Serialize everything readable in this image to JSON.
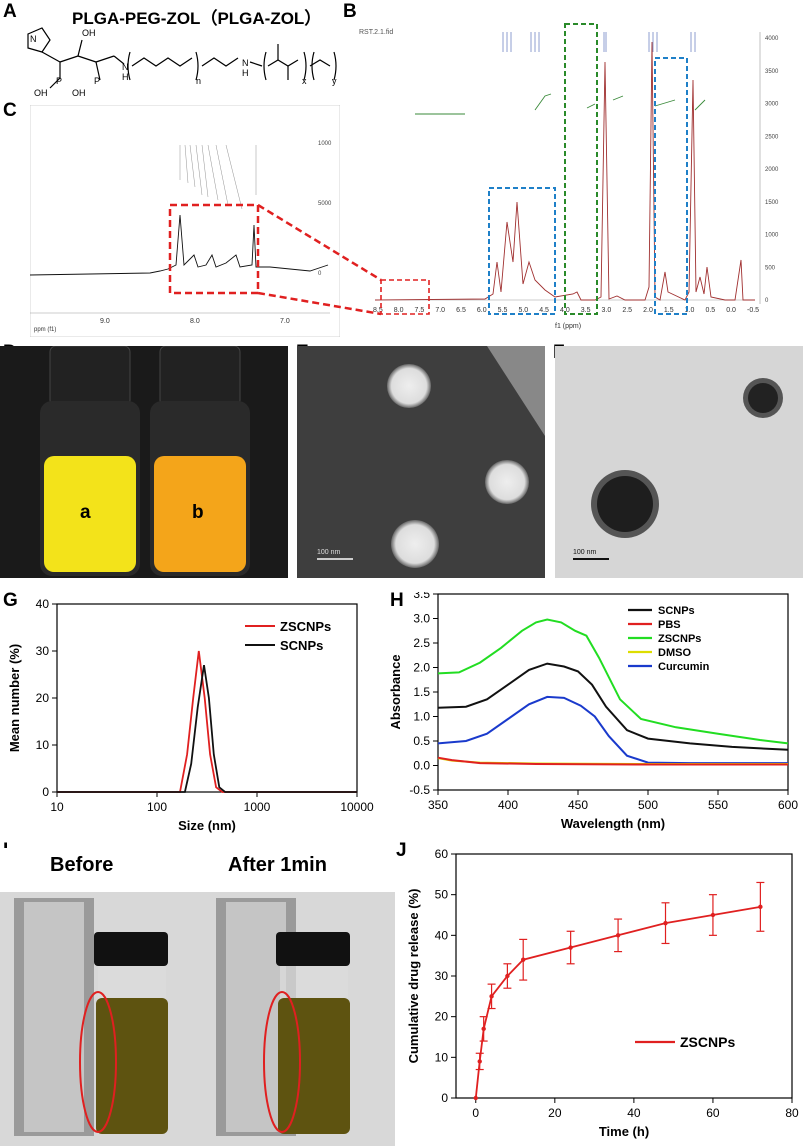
{
  "panels": {
    "A": "A",
    "B": "B",
    "C": "C",
    "D": "D",
    "E": "E",
    "F": "F",
    "G": "G",
    "H": "H",
    "I": "I",
    "J": "J"
  },
  "panel_a": {
    "title": "PLGA-PEG-ZOL（PLGA-ZOL）",
    "sub_n": "n",
    "sub_x": "x",
    "sub_y": "y",
    "oh1": "OH",
    "oh2": "OH",
    "oh3": "OH",
    "h": "H",
    "h2": "H"
  },
  "panel_b": {
    "axis_label": "f1 (ppm)",
    "header": "RST.2.1.fid",
    "x_ticks": [
      "6.5",
      "6.0",
      "5.5",
      "5.0",
      "4.5",
      "4.0",
      "3.5",
      "3.0",
      "2.5",
      "2.0",
      "1.5",
      "1.0",
      "0.5",
      "0.0",
      "-0.5"
    ],
    "left_ticks": [
      "8.5",
      "8.0",
      "7.5",
      "7.0"
    ],
    "y_ticks": [
      "4000",
      "3500",
      "3000",
      "2500",
      "2000",
      "1500",
      "1000",
      "500",
      "0"
    ]
  },
  "panel_c": {
    "axis_label": "ppm (f1)",
    "x_ticks": [
      "9.0",
      "8.0",
      "7.0"
    ],
    "y_ticks": [
      "1000",
      "5000",
      "0"
    ]
  },
  "panel_d": {
    "label_a": "a",
    "label_b": "b"
  },
  "panel_e": {
    "scale": "100 nm"
  },
  "panel_f": {
    "scale": "100 nm"
  },
  "panel_i": {
    "before": "Before",
    "after": "After 1min"
  },
  "chart_data": [
    {
      "type": "line",
      "id": "G",
      "xlabel": "Size (nm)",
      "ylabel": "Mean number  (%)",
      "xscale": "log",
      "xlim": [
        10,
        10000
      ],
      "ylim": [
        0,
        40
      ],
      "x_ticks": [
        "10",
        "100",
        "1000",
        "10000"
      ],
      "y_ticks": [
        "0",
        "10",
        "20",
        "30",
        "40"
      ],
      "legend": [
        "ZSCNPs",
        "SCNPs"
      ],
      "series": [
        {
          "name": "ZSCNPs",
          "color": "#e02020",
          "points": [
            [
              10,
              0
            ],
            [
              170,
              0
            ],
            [
              200,
              8
            ],
            [
              230,
              20
            ],
            [
              262,
              30
            ],
            [
              300,
              20
            ],
            [
              340,
              8
            ],
            [
              390,
              1
            ],
            [
              450,
              0
            ],
            [
              10000,
              0
            ]
          ]
        },
        {
          "name": "SCNPs",
          "color": "#111111",
          "points": [
            [
              10,
              0
            ],
            [
              190,
              0
            ],
            [
              220,
              6
            ],
            [
              255,
              18
            ],
            [
              295,
              27
            ],
            [
              330,
              20
            ],
            [
              370,
              8
            ],
            [
              420,
              1
            ],
            [
              480,
              0
            ],
            [
              10000,
              0
            ]
          ]
        }
      ]
    },
    {
      "type": "line",
      "id": "H",
      "xlabel": "Wavelength (nm)",
      "ylabel": "Absorbance",
      "xlim": [
        350,
        600
      ],
      "ylim": [
        -0.5,
        3.5
      ],
      "x_ticks": [
        "350",
        "400",
        "450",
        "500",
        "550",
        "600"
      ],
      "y_ticks": [
        "3.5",
        "3.0",
        "2.5",
        "2.0",
        "1.5",
        "1.0",
        "0.5",
        "0.0",
        "-0.5"
      ],
      "legend": [
        "SCNPs",
        "PBS",
        "ZSCNPs",
        "DMSO",
        "Curcumin"
      ],
      "series": [
        {
          "name": "ZSCNPs",
          "color": "#22dd22",
          "points": [
            [
              350,
              1.88
            ],
            [
              365,
              1.9
            ],
            [
              380,
              2.1
            ],
            [
              395,
              2.4
            ],
            [
              410,
              2.75
            ],
            [
              420,
              2.92
            ],
            [
              428,
              2.98
            ],
            [
              438,
              2.92
            ],
            [
              448,
              2.75
            ],
            [
              456,
              2.65
            ],
            [
              465,
              2.2
            ],
            [
              480,
              1.35
            ],
            [
              495,
              0.95
            ],
            [
              520,
              0.78
            ],
            [
              550,
              0.65
            ],
            [
              580,
              0.52
            ],
            [
              600,
              0.45
            ]
          ]
        },
        {
          "name": "SCNPs",
          "color": "#111111",
          "points": [
            [
              350,
              1.18
            ],
            [
              370,
              1.2
            ],
            [
              385,
              1.35
            ],
            [
              400,
              1.65
            ],
            [
              415,
              1.95
            ],
            [
              428,
              2.08
            ],
            [
              440,
              2.02
            ],
            [
              450,
              1.92
            ],
            [
              460,
              1.65
            ],
            [
              470,
              1.2
            ],
            [
              485,
              0.72
            ],
            [
              500,
              0.55
            ],
            [
              530,
              0.45
            ],
            [
              560,
              0.38
            ],
            [
              600,
              0.32
            ]
          ]
        },
        {
          "name": "Curcumin",
          "color": "#1a3acc",
          "points": [
            [
              350,
              0.45
            ],
            [
              370,
              0.5
            ],
            [
              385,
              0.65
            ],
            [
              400,
              0.95
            ],
            [
              415,
              1.25
            ],
            [
              428,
              1.4
            ],
            [
              440,
              1.38
            ],
            [
              452,
              1.22
            ],
            [
              462,
              1.0
            ],
            [
              472,
              0.6
            ],
            [
              485,
              0.2
            ],
            [
              500,
              0.06
            ],
            [
              530,
              0.05
            ],
            [
              600,
              0.05
            ]
          ]
        },
        {
          "name": "DMSO",
          "color": "#dddd00",
          "points": [
            [
              350,
              0.15
            ],
            [
              360,
              0.1
            ],
            [
              380,
              0.06
            ],
            [
              420,
              0.04
            ],
            [
              500,
              0.03
            ],
            [
              600,
              0.03
            ]
          ]
        },
        {
          "name": "PBS",
          "color": "#e02020",
          "points": [
            [
              350,
              0.16
            ],
            [
              360,
              0.11
            ],
            [
              380,
              0.05
            ],
            [
              420,
              0.03
            ],
            [
              500,
              0.02
            ],
            [
              600,
              0.02
            ]
          ]
        }
      ]
    },
    {
      "type": "line",
      "id": "J",
      "xlabel": "Time (h)",
      "ylabel": "Cumulative drug release (%)",
      "xlim": [
        -5,
        80
      ],
      "ylim": [
        0,
        60
      ],
      "x_ticks": [
        "0",
        "20",
        "40",
        "60",
        "80"
      ],
      "y_ticks": [
        "0",
        "10",
        "20",
        "30",
        "40",
        "50",
        "60"
      ],
      "legend": [
        "ZSCNPs"
      ],
      "series": [
        {
          "name": "ZSCNPs",
          "color": "#e02020",
          "x": [
            0,
            1,
            2,
            4,
            8,
            12,
            24,
            36,
            48,
            60,
            72
          ],
          "y": [
            0,
            9,
            17,
            25,
            30,
            34,
            37,
            40,
            43,
            45,
            47
          ],
          "err": [
            0,
            2,
            3,
            3,
            3,
            5,
            4,
            4,
            5,
            5,
            6
          ]
        }
      ]
    }
  ]
}
